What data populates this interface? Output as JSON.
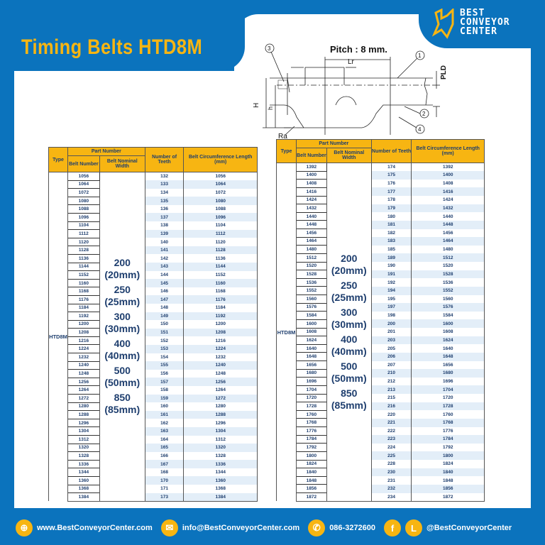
{
  "title": "Timing Belts HTD8M",
  "logo": {
    "line1": "BEST",
    "line2": "CONVEYOR",
    "line3": "CENTER"
  },
  "diagram": {
    "pitch": "Pitch : 8 mm.",
    "lr": "Lr",
    "pld": "PLD",
    "h_upper": "H",
    "h_lower": "h",
    "ra": "Ra",
    "callouts": [
      "1",
      "2",
      "3",
      "4"
    ]
  },
  "headers": {
    "part_number": "Part Number",
    "type": "Type",
    "belt_number": "Belt Number",
    "nominal_width": "Belt Nominal Width",
    "teeth": "Number of Teeth",
    "length": "Belt Circumference Length (mm)"
  },
  "type": "HTD8M",
  "widths": [
    "200",
    "(20mm)",
    "250",
    "(25mm)",
    "300",
    "(30mm)",
    "400",
    "(40mm)",
    "500",
    "(50mm)",
    "850",
    "(85mm)"
  ],
  "left_table": {
    "rows": [
      [
        "1056",
        "132",
        "1056"
      ],
      [
        "1064",
        "133",
        "1064"
      ],
      [
        "1072",
        "134",
        "1072"
      ],
      [
        "1080",
        "135",
        "1080"
      ],
      [
        "1088",
        "136",
        "1088"
      ],
      [
        "1096",
        "137",
        "1096"
      ],
      [
        "1104",
        "138",
        "1104"
      ],
      [
        "1112",
        "139",
        "1112"
      ],
      [
        "1120",
        "140",
        "1120"
      ],
      [
        "1128",
        "141",
        "1128"
      ],
      [
        "1136",
        "142",
        "1136"
      ],
      [
        "1144",
        "143",
        "1144"
      ],
      [
        "1152",
        "144",
        "1152"
      ],
      [
        "1160",
        "145",
        "1160"
      ],
      [
        "1168",
        "146",
        "1168"
      ],
      [
        "1176",
        "147",
        "1176"
      ],
      [
        "1184",
        "148",
        "1184"
      ],
      [
        "1192",
        "149",
        "1192"
      ],
      [
        "1200",
        "150",
        "1200"
      ],
      [
        "1208",
        "151",
        "1208"
      ],
      [
        "1216",
        "152",
        "1216"
      ],
      [
        "1224",
        "153",
        "1224"
      ],
      [
        "1232",
        "154",
        "1232"
      ],
      [
        "1240",
        "155",
        "1240"
      ],
      [
        "1248",
        "156",
        "1248"
      ],
      [
        "1256",
        "157",
        "1256"
      ],
      [
        "1264",
        "158",
        "1264"
      ],
      [
        "1272",
        "159",
        "1272"
      ],
      [
        "1280",
        "160",
        "1280"
      ],
      [
        "1288",
        "161",
        "1288"
      ],
      [
        "1296",
        "162",
        "1296"
      ],
      [
        "1304",
        "163",
        "1304"
      ],
      [
        "1312",
        "164",
        "1312"
      ],
      [
        "1320",
        "165",
        "1320"
      ],
      [
        "1328",
        "166",
        "1328"
      ],
      [
        "1336",
        "167",
        "1336"
      ],
      [
        "1344",
        "168",
        "1344"
      ],
      [
        "1360",
        "170",
        "1360"
      ],
      [
        "1368",
        "171",
        "1368"
      ],
      [
        "1384",
        "173",
        "1384"
      ]
    ]
  },
  "right_table": {
    "rows": [
      [
        "1392",
        "174",
        "1392"
      ],
      [
        "1400",
        "175",
        "1400"
      ],
      [
        "1408",
        "176",
        "1408"
      ],
      [
        "1416",
        "177",
        "1416"
      ],
      [
        "1424",
        "178",
        "1424"
      ],
      [
        "1432",
        "179",
        "1432"
      ],
      [
        "1440",
        "180",
        "1440"
      ],
      [
        "1448",
        "181",
        "1448"
      ],
      [
        "1456",
        "182",
        "1456"
      ],
      [
        "1464",
        "183",
        "1464"
      ],
      [
        "1480",
        "185",
        "1480"
      ],
      [
        "1512",
        "189",
        "1512"
      ],
      [
        "1520",
        "190",
        "1520"
      ],
      [
        "1528",
        "191",
        "1528"
      ],
      [
        "1536",
        "192",
        "1536"
      ],
      [
        "1552",
        "194",
        "1552"
      ],
      [
        "1560",
        "195",
        "1560"
      ],
      [
        "1576",
        "197",
        "1576"
      ],
      [
        "1584",
        "198",
        "1584"
      ],
      [
        "1600",
        "200",
        "1600"
      ],
      [
        "1608",
        "201",
        "1608"
      ],
      [
        "1624",
        "203",
        "1624"
      ],
      [
        "1640",
        "205",
        "1640"
      ],
      [
        "1648",
        "206",
        "1648"
      ],
      [
        "1656",
        "207",
        "1656"
      ],
      [
        "1680",
        "210",
        "1680"
      ],
      [
        "1696",
        "212",
        "1696"
      ],
      [
        "1704",
        "213",
        "1704"
      ],
      [
        "1720",
        "215",
        "1720"
      ],
      [
        "1728",
        "216",
        "1728"
      ],
      [
        "1760",
        "220",
        "1760"
      ],
      [
        "1768",
        "221",
        "1768"
      ],
      [
        "1776",
        "222",
        "1776"
      ],
      [
        "1784",
        "223",
        "1784"
      ],
      [
        "1792",
        "224",
        "1792"
      ],
      [
        "1800",
        "225",
        "1800"
      ],
      [
        "1824",
        "228",
        "1824"
      ],
      [
        "1840",
        "230",
        "1840"
      ],
      [
        "1848",
        "231",
        "1848"
      ],
      [
        "1856",
        "232",
        "1856"
      ],
      [
        "1872",
        "234",
        "1872"
      ]
    ]
  },
  "footer": {
    "website": "www.BestConveyorCenter.com",
    "email": "info@BestConveyorCenter.com",
    "phone": "086-3272600",
    "social": "@BestConveyorCenter",
    "icons": [
      "globe-icon",
      "mail-icon",
      "phone-icon",
      "facebook-icon",
      "line-icon"
    ]
  },
  "colors": {
    "brand_blue": "#0b73bd",
    "accent_yellow": "#f7b512",
    "text_navy": "#1e3e6e",
    "stripe": "#e3eef8"
  }
}
